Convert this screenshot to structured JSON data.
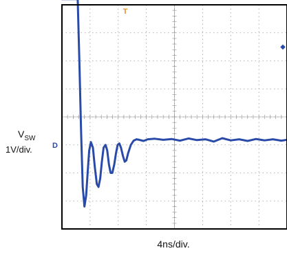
{
  "chart_data": {
    "type": "line",
    "title": "",
    "ylabel": {
      "signal": "V",
      "subscript": "SW",
      "scale": "1V/div."
    },
    "xlabel": "4ns/div.",
    "markers": {
      "channel": "D",
      "trigger": "T",
      "trigger_level": "◆"
    },
    "grid": true,
    "x_divisions": 8,
    "y_divisions": 8,
    "xlim": [
      0,
      8
    ],
    "ylim": [
      -4,
      4
    ],
    "ground_level_div": -1,
    "series": [
      {
        "color": "#2a4aa8",
        "x": [
          0,
          0.56,
          0.62,
          0.68,
          0.74,
          0.8,
          0.86,
          0.92,
          0.97,
          1.03,
          1.1,
          1.17,
          1.24,
          1.3,
          1.36,
          1.42,
          1.48,
          1.55,
          1.61,
          1.67,
          1.73,
          1.79,
          1.86,
          1.92,
          1.98,
          2.04,
          2.1,
          2.17,
          2.23,
          2.29,
          2.35,
          2.45,
          2.55,
          2.65,
          2.75,
          2.9,
          3.05,
          3.3,
          3.6,
          3.9,
          4.2,
          4.5,
          4.8,
          5.1,
          5.4,
          5.7,
          6.0,
          6.3,
          6.6,
          6.9,
          7.2,
          7.5,
          7.8,
          8.0
        ],
        "y": [
          4.3,
          4.3,
          2.0,
          -0.5,
          -2.5,
          -3.2,
          -2.8,
          -1.9,
          -1.2,
          -0.9,
          -1.1,
          -1.8,
          -2.4,
          -2.5,
          -2.2,
          -1.6,
          -1.1,
          -1.0,
          -1.2,
          -1.7,
          -2.0,
          -2.0,
          -1.7,
          -1.3,
          -1.0,
          -0.95,
          -1.1,
          -1.4,
          -1.6,
          -1.55,
          -1.3,
          -1.0,
          -0.85,
          -0.8,
          -0.82,
          -0.86,
          -0.8,
          -0.78,
          -0.82,
          -0.79,
          -0.85,
          -0.77,
          -0.83,
          -0.8,
          -0.88,
          -0.76,
          -0.84,
          -0.8,
          -0.86,
          -0.79,
          -0.84,
          -0.8,
          -0.85,
          -0.82
        ]
      }
    ]
  }
}
